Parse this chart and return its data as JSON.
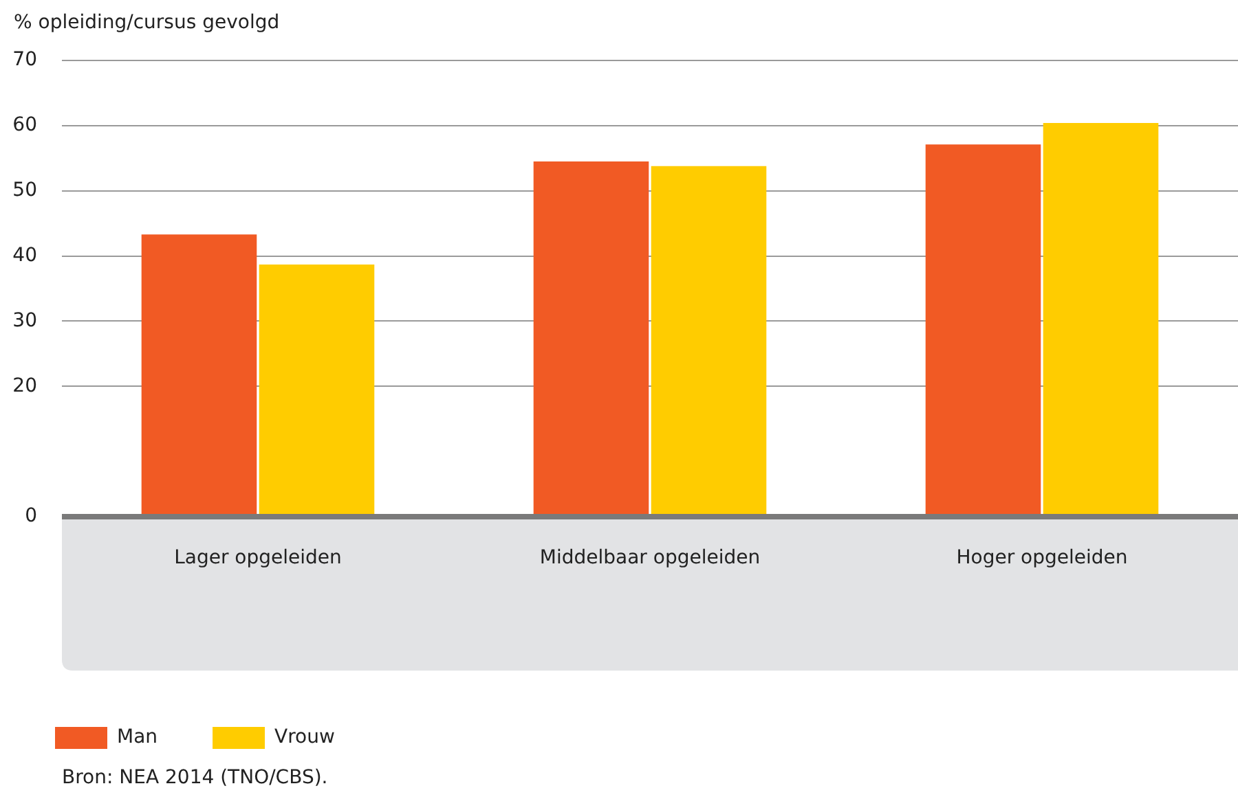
{
  "chart_data": {
    "type": "bar",
    "ylabel": "% opleiding/cursus gevolgd",
    "categories": [
      "Lager opgeleiden",
      "Middelbaar opgeleiden",
      "Hoger opgeleiden"
    ],
    "series": [
      {
        "name": "Man",
        "color": "#f15a24",
        "values": [
          43.3,
          54.5,
          57.1
        ]
      },
      {
        "name": "Vrouw",
        "color": "#ffcc00",
        "values": [
          38.7,
          53.8,
          60.4
        ]
      }
    ],
    "ylim": [
      0,
      70
    ],
    "yticks": [
      0,
      20,
      30,
      40,
      50,
      60,
      70
    ],
    "grid": "y",
    "legend": "bottom left",
    "annotations": [
      "Bron: NEA 2014 (TNO/CBS)."
    ]
  }
}
